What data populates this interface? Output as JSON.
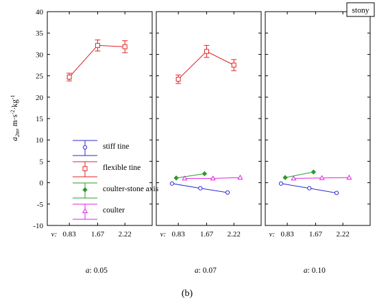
{
  "figure_label": "(b)",
  "y_axis": {
    "label_base": "a",
    "label_sub": "2m",
    "label_units_prefix": ", m·s",
    "label_units_sup1": "-2",
    "label_units_mid": "·kg",
    "label_units_sup2": "-1",
    "ylim": [
      -10,
      40
    ],
    "ticks": [
      "40",
      "35",
      "30",
      "25",
      "20",
      "15",
      "10",
      "5",
      "0",
      "-5",
      "-10"
    ]
  },
  "x_axis": {
    "prefix": "v:",
    "ticks": [
      "0.83",
      "1.67",
      "2.22"
    ]
  },
  "corner_tag": "stony",
  "panel_labels": [
    "a: 0.05",
    "a: 0.07",
    "a: 0.10"
  ],
  "legend": [
    {
      "name": "stiff tine",
      "color": "#2a2ad6",
      "marker": "circle"
    },
    {
      "name": "flexible tine",
      "color": "#e02020",
      "marker": "square"
    },
    {
      "name": "coulter-stone axis",
      "color": "#2e9a2e",
      "marker": "diamond"
    },
    {
      "name": "coulter",
      "color": "#e020e0",
      "marker": "triangle"
    }
  ],
  "chart_data": {
    "type": "line",
    "categories": [
      "0.83",
      "1.67",
      "2.22"
    ],
    "ylim": [
      -10,
      40
    ],
    "panels": [
      {
        "label": "a: 0.05",
        "series": [
          {
            "name": "flexible tine",
            "values": [
              24.7,
              32.1,
              31.8
            ],
            "err": [
              0.9,
              1.3,
              1.4
            ]
          }
        ]
      },
      {
        "label": "a: 0.07",
        "series": [
          {
            "name": "flexible tine",
            "values": [
              24.2,
              30.7,
              27.5
            ],
            "err": [
              1.0,
              1.4,
              1.3
            ]
          },
          {
            "name": "stiff tine",
            "values": [
              -0.2,
              -1.3,
              -2.3
            ],
            "err": [
              0,
              0,
              0
            ]
          },
          {
            "name": "coulter-stone axis",
            "values": [
              1.1,
              2.1
            ],
            "err": [
              0,
              0
            ]
          },
          {
            "name": "coulter",
            "values": [
              1.0,
              1.0,
              1.2
            ],
            "err": [
              0,
              0,
              0
            ]
          }
        ]
      },
      {
        "label": "a: 0.10",
        "series": [
          {
            "name": "stiff tine",
            "values": [
              -0.2,
              -1.3,
              -2.4
            ],
            "err": [
              0,
              0,
              0
            ]
          },
          {
            "name": "coulter-stone axis",
            "values": [
              1.2,
              2.5
            ],
            "err": [
              0,
              0
            ]
          },
          {
            "name": "coulter",
            "values": [
              1.0,
              1.1,
              1.2
            ],
            "err": [
              0,
              0,
              0
            ]
          }
        ]
      }
    ]
  }
}
